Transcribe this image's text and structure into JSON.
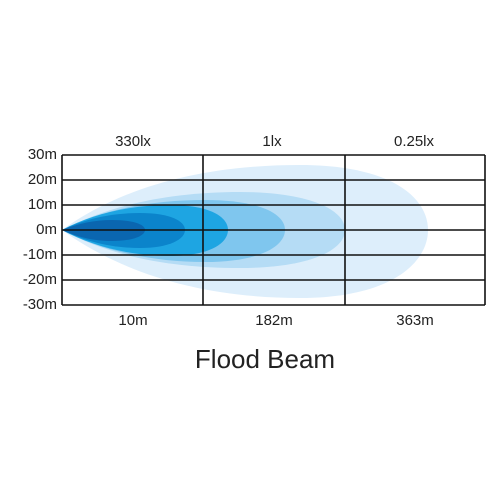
{
  "title": "Flood Beam",
  "lux_labels": [
    "330lx",
    "1lx",
    "0.25lx"
  ],
  "distance_labels": [
    "10m",
    "182m",
    "363m"
  ],
  "width_labels": [
    "30m",
    "20m",
    "10m",
    "0m",
    "-10m",
    "-20m",
    "-30m"
  ]
}
